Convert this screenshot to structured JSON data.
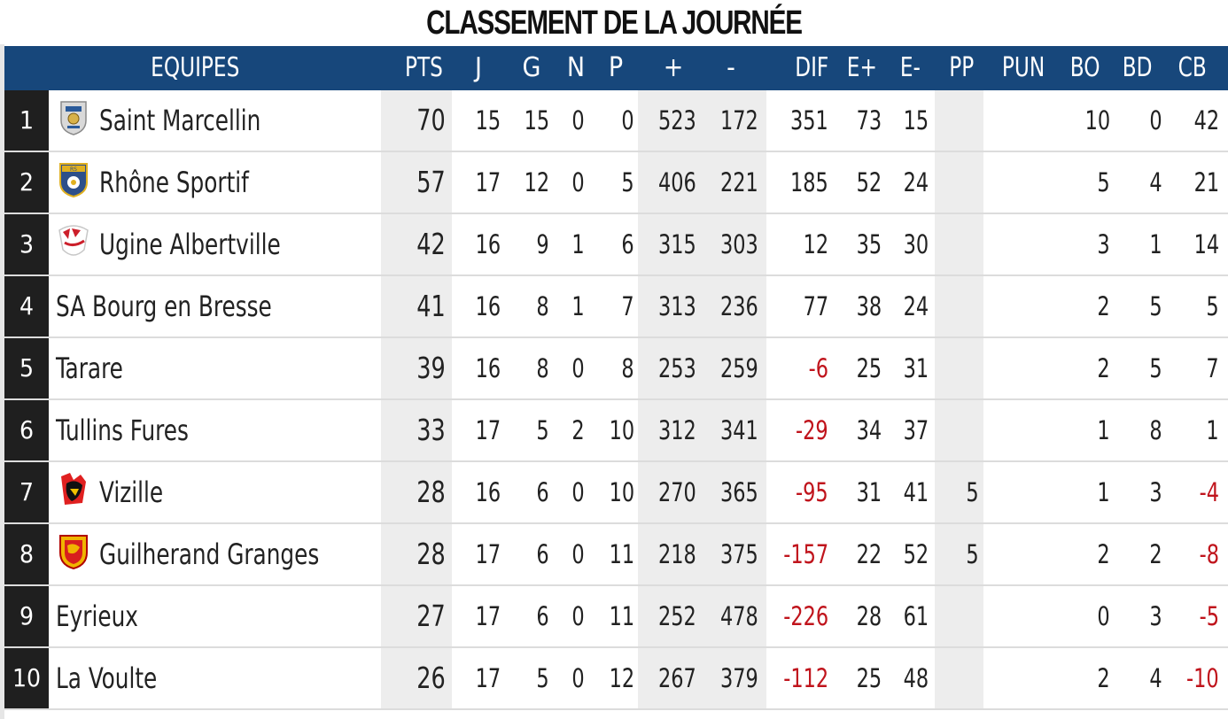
{
  "title": "CLASSEMENT DE LA JOURNÉE",
  "columns": {
    "team": "EQUIPES",
    "pts": "PTS",
    "j": "J",
    "g": "G",
    "n": "N",
    "p": "P",
    "plus": "+",
    "minus": "-",
    "dif": "DIF",
    "eplus": "E+",
    "eminus": "E-",
    "pp": "PP",
    "pun": "PUN",
    "bo": "BO",
    "bd": "BD",
    "cb": "CB"
  },
  "colors": {
    "header_bg": "#17477b",
    "negative": "#c0141c",
    "rank_bg": "#1f1f1f"
  },
  "rows": [
    {
      "rank": "1",
      "team": "Saint Marcellin",
      "logo": "saint-marcellin-logo",
      "pts": "70",
      "j": "15",
      "g": "15",
      "n": "0",
      "p": "0",
      "plus": "523",
      "minus": "172",
      "dif": "351",
      "eplus": "73",
      "eminus": "15",
      "pp": "",
      "pun": "",
      "bo": "10",
      "bd": "0",
      "cb": "42"
    },
    {
      "rank": "2",
      "team": "Rhône Sportif",
      "logo": "rhone-sportif-logo",
      "pts": "57",
      "j": "17",
      "g": "12",
      "n": "0",
      "p": "5",
      "plus": "406",
      "minus": "221",
      "dif": "185",
      "eplus": "52",
      "eminus": "24",
      "pp": "",
      "pun": "",
      "bo": "5",
      "bd": "4",
      "cb": "21"
    },
    {
      "rank": "3",
      "team": "Ugine Albertville",
      "logo": "ugine-albertville-logo",
      "pts": "42",
      "j": "16",
      "g": "9",
      "n": "1",
      "p": "6",
      "plus": "315",
      "minus": "303",
      "dif": "12",
      "eplus": "35",
      "eminus": "30",
      "pp": "",
      "pun": "",
      "bo": "3",
      "bd": "1",
      "cb": "14"
    },
    {
      "rank": "4",
      "team": "SA Bourg en Bresse",
      "logo": "",
      "pts": "41",
      "j": "16",
      "g": "8",
      "n": "1",
      "p": "7",
      "plus": "313",
      "minus": "236",
      "dif": "77",
      "eplus": "38",
      "eminus": "24",
      "pp": "",
      "pun": "",
      "bo": "2",
      "bd": "5",
      "cb": "5"
    },
    {
      "rank": "5",
      "team": "Tarare",
      "logo": "",
      "pts": "39",
      "j": "16",
      "g": "8",
      "n": "0",
      "p": "8",
      "plus": "253",
      "minus": "259",
      "dif": "-6",
      "eplus": "25",
      "eminus": "31",
      "pp": "",
      "pun": "",
      "bo": "2",
      "bd": "5",
      "cb": "7"
    },
    {
      "rank": "6",
      "team": "Tullins Fures",
      "logo": "",
      "pts": "33",
      "j": "17",
      "g": "5",
      "n": "2",
      "p": "10",
      "plus": "312",
      "minus": "341",
      "dif": "-29",
      "eplus": "34",
      "eminus": "37",
      "pp": "",
      "pun": "",
      "bo": "1",
      "bd": "8",
      "cb": "1"
    },
    {
      "rank": "7",
      "team": "Vizille",
      "logo": "vizille-logo",
      "pts": "28",
      "j": "16",
      "g": "6",
      "n": "0",
      "p": "10",
      "plus": "270",
      "minus": "365",
      "dif": "-95",
      "eplus": "31",
      "eminus": "41",
      "pp": "5",
      "pun": "",
      "bo": "1",
      "bd": "3",
      "cb": "-4"
    },
    {
      "rank": "8",
      "team": "Guilherand Granges",
      "logo": "guilherand-granges-logo",
      "pts": "28",
      "j": "17",
      "g": "6",
      "n": "0",
      "p": "11",
      "plus": "218",
      "minus": "375",
      "dif": "-157",
      "eplus": "22",
      "eminus": "52",
      "pp": "5",
      "pun": "",
      "bo": "2",
      "bd": "2",
      "cb": "-8"
    },
    {
      "rank": "9",
      "team": "Eyrieux",
      "logo": "",
      "pts": "27",
      "j": "17",
      "g": "6",
      "n": "0",
      "p": "11",
      "plus": "252",
      "minus": "478",
      "dif": "-226",
      "eplus": "28",
      "eminus": "61",
      "pp": "",
      "pun": "",
      "bo": "0",
      "bd": "3",
      "cb": "-5"
    },
    {
      "rank": "10",
      "team": "La Voulte",
      "logo": "",
      "pts": "26",
      "j": "17",
      "g": "5",
      "n": "0",
      "p": "12",
      "plus": "267",
      "minus": "379",
      "dif": "-112",
      "eplus": "25",
      "eminus": "48",
      "pp": "",
      "pun": "",
      "bo": "2",
      "bd": "4",
      "cb": "-10"
    }
  ]
}
